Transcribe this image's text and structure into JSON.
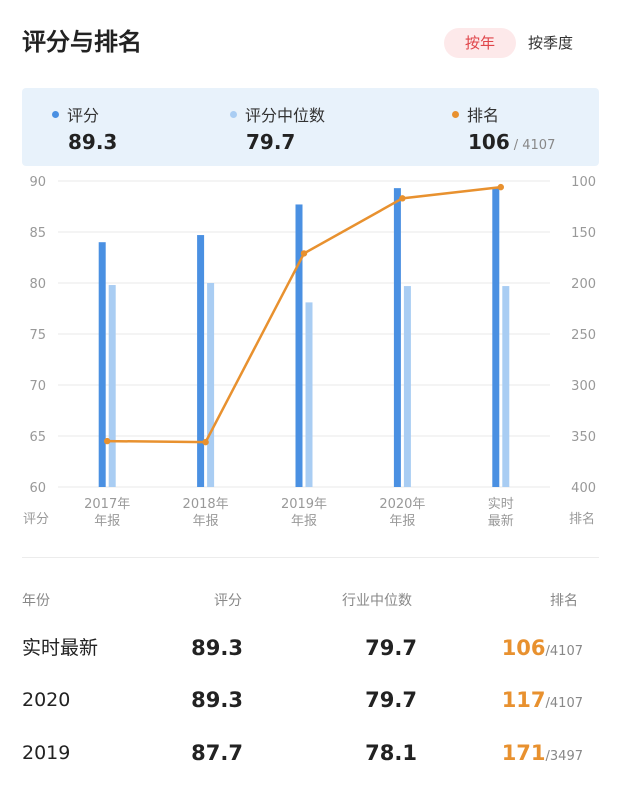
{
  "header": {
    "title": "评分与排名",
    "toggle_year": "按年",
    "toggle_quarter": "按季度"
  },
  "summary": {
    "score": {
      "label": "评分",
      "value": "89.3"
    },
    "median": {
      "label": "评分中位数",
      "value": "79.7"
    },
    "rank": {
      "label": "排名",
      "value": "106",
      "total": "/ 4107"
    }
  },
  "colors": {
    "score": "#4a90e2",
    "median": "#a9cdf3",
    "rank": "#e8912f",
    "accent": "#e0454a"
  },
  "chart_data": {
    "type": "bar",
    "categories": [
      [
        "2017年",
        "年报"
      ],
      [
        "2018年",
        "年报"
      ],
      [
        "2019年",
        "年报"
      ],
      [
        "2020年",
        "年报"
      ],
      [
        "实时",
        "最新"
      ]
    ],
    "series": [
      {
        "name": "评分",
        "type": "bar",
        "axis": "left",
        "values": [
          84.0,
          84.7,
          87.7,
          89.3,
          89.3
        ]
      },
      {
        "name": "评分中位数",
        "type": "bar",
        "axis": "left",
        "values": [
          79.8,
          80.0,
          78.1,
          79.7,
          79.7
        ]
      },
      {
        "name": "排名",
        "type": "line",
        "axis": "right",
        "values": [
          355,
          356,
          171,
          117,
          106
        ]
      }
    ],
    "y_left": {
      "min": 60,
      "max": 90,
      "ticks": [
        90,
        85,
        80,
        75,
        70,
        65,
        60
      ],
      "label": "评分"
    },
    "y_right": {
      "min": 100,
      "max": 400,
      "inverted": true,
      "ticks": [
        100,
        150,
        200,
        250,
        300,
        350,
        400
      ],
      "label": "排名"
    },
    "grid": true
  },
  "table": {
    "headers": {
      "year": "年份",
      "score": "评分",
      "median": "行业中位数",
      "rank": "排名"
    },
    "rows": [
      {
        "name": "实时最新",
        "score": "89.3",
        "median": "79.7",
        "rank": "106",
        "total": "/4107"
      },
      {
        "name": "2020",
        "score": "89.3",
        "median": "79.7",
        "rank": "117",
        "total": "/4107"
      },
      {
        "name": "2019",
        "score": "87.7",
        "median": "78.1",
        "rank": "171",
        "total": "/3497"
      }
    ]
  }
}
